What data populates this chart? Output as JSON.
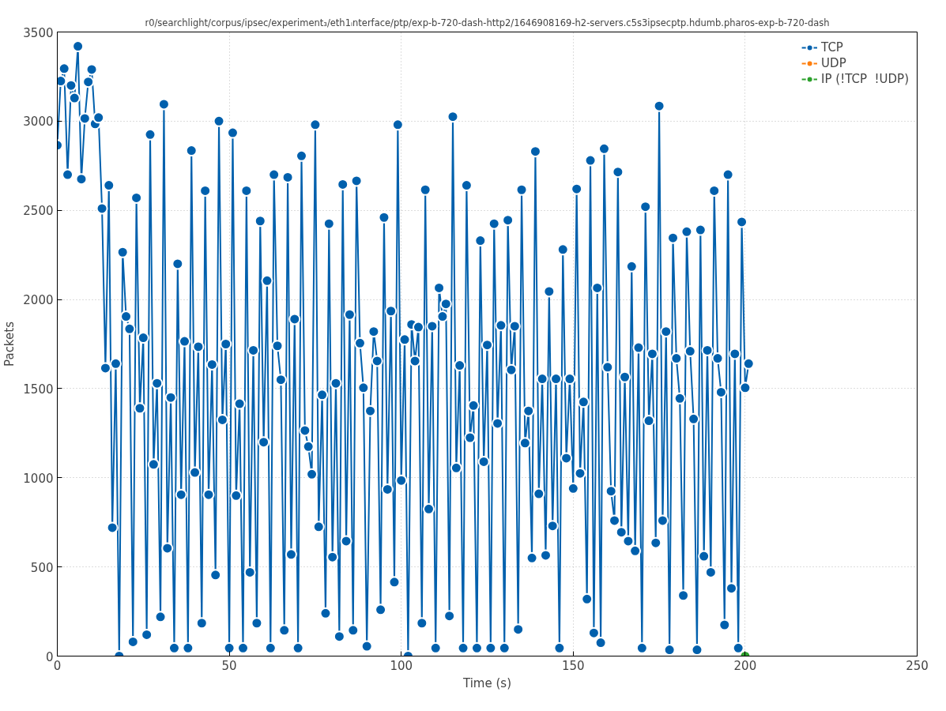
{
  "chart_data": {
    "type": "line",
    "title": "r0/searchlight/corpus/ipsec/experiment₃/eth1ᵢnterface/ptp/exp-b-720-dash-http2/1646908169-h2-servers.c5s3ipsecptp.hdumb.pharos-exp-b-720-dash",
    "xlabel": "Time (s)",
    "ylabel": "Packets",
    "xlim": [
      0,
      250
    ],
    "xticks": [
      0,
      50,
      100,
      150,
      200,
      250
    ],
    "ylim": [
      0,
      3500
    ],
    "yticks": [
      0,
      500,
      1000,
      1500,
      2000,
      2500,
      3000,
      3500
    ],
    "grid": true,
    "legend": "top right",
    "marker": "circle",
    "line_style": "solid",
    "series": [
      {
        "name": "TCP",
        "color": "#0060ad",
        "x": [
          0,
          1,
          2,
          3,
          4,
          5,
          6,
          7,
          8,
          9,
          10,
          11,
          12,
          13,
          14,
          15,
          16,
          17,
          18,
          19,
          20,
          21,
          22,
          23,
          24,
          25,
          26,
          27,
          28,
          29,
          30,
          31,
          32,
          33,
          34,
          35,
          36,
          37,
          38,
          39,
          40,
          41,
          42,
          43,
          44,
          45,
          46,
          47,
          48,
          49,
          50,
          51,
          52,
          53,
          54,
          55,
          56,
          57,
          58,
          59,
          60,
          61,
          62,
          63,
          64,
          65,
          66,
          67,
          68,
          69,
          70,
          71,
          72,
          73,
          74,
          75,
          76,
          77,
          78,
          79,
          80,
          81,
          82,
          83,
          84,
          85,
          86,
          87,
          88,
          89,
          90,
          91,
          92,
          93,
          94,
          95,
          96,
          97,
          98,
          99,
          100,
          101,
          102,
          103,
          104,
          105,
          106,
          107,
          108,
          109,
          110,
          111,
          112,
          113,
          114,
          115,
          116,
          117,
          118,
          119,
          120,
          121,
          122,
          123,
          124,
          125,
          126,
          127,
          128,
          129,
          130,
          131,
          132,
          133,
          134,
          135,
          136,
          137,
          138,
          139,
          140,
          141,
          142,
          143,
          144,
          145,
          146,
          147,
          148,
          149,
          150,
          151,
          152,
          153,
          154,
          155,
          156,
          157,
          158,
          159,
          160,
          161,
          162,
          163,
          164,
          165,
          166,
          167,
          168,
          169,
          170,
          171,
          172,
          173,
          174,
          175,
          176,
          177,
          178,
          179,
          180,
          181,
          182,
          183,
          184,
          185,
          186,
          187,
          188,
          189,
          190,
          191,
          192,
          193,
          194,
          195,
          196,
          197,
          198,
          199,
          200,
          201
        ],
        "values": [
          2865,
          3225,
          3295,
          2700,
          3200,
          3130,
          3420,
          2675,
          3015,
          3220,
          3290,
          2985,
          3020,
          2510,
          1615,
          2640,
          720,
          1640,
          0,
          2265,
          1905,
          1835,
          80,
          2570,
          1390,
          1785,
          120,
          2925,
          1075,
          1530,
          220,
          3095,
          605,
          1450,
          45,
          2200,
          905,
          1765,
          45,
          2835,
          1030,
          1735,
          185,
          2610,
          905,
          1635,
          455,
          3000,
          1325,
          1750,
          45,
          2935,
          900,
          1415,
          45,
          2610,
          470,
          1715,
          185,
          2440,
          1200,
          2105,
          45,
          2700,
          1740,
          1550,
          145,
          2685,
          570,
          1890,
          45,
          2805,
          1265,
          1175,
          1020,
          2980,
          725,
          1465,
          240,
          2425,
          555,
          1530,
          110,
          2645,
          645,
          1915,
          145,
          2665,
          1755,
          1505,
          55,
          1375,
          1820,
          1655,
          260,
          2460,
          935,
          1935,
          415,
          2980,
          985,
          1775,
          0,
          1860,
          1655,
          1845,
          185,
          2615,
          825,
          1850,
          45,
          2065,
          1905,
          1975,
          225,
          3025,
          1055,
          1630,
          45,
          2640,
          1225,
          1405,
          45,
          2330,
          1090,
          1745,
          45,
          2425,
          1305,
          1855,
          45,
          2445,
          1605,
          1850,
          150,
          2615,
          1195,
          1375,
          550,
          2830,
          910,
          1555,
          565,
          2045,
          730,
          1555,
          45,
          2280,
          1110,
          1555,
          940,
          2620,
          1025,
          1425,
          320,
          2780,
          130,
          2065,
          75,
          2845,
          1620,
          925,
          760,
          2715,
          695,
          1565,
          645,
          2185,
          590,
          1730,
          45,
          2520,
          1320,
          1695,
          635,
          3085,
          760,
          1820,
          35,
          2345,
          1670,
          1445,
          340,
          2380,
          1710,
          1330,
          35,
          2390,
          560,
          1715,
          470,
          2610,
          1670,
          1480,
          175,
          2700,
          380,
          1695,
          45,
          2435,
          1505,
          1640
        ]
      },
      {
        "name": "UDP",
        "color": "#ff7f0e"
      },
      {
        "name": "IP (!TCP  !UDP)",
        "color": "#2ca02c",
        "x": [
          200
        ],
        "values": [
          0
        ]
      }
    ]
  }
}
